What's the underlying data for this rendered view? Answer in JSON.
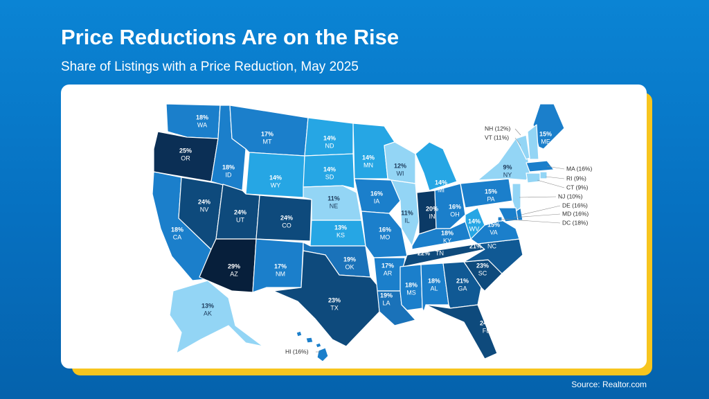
{
  "title": "Price Reductions Are on the Rise",
  "subtitle": "Share of Listings with a Price Reduction, May 2025",
  "source": "Source: Realtor.com",
  "states": [
    {
      "abbr": "WA",
      "value": 18,
      "value_label": "18%",
      "color": "#1b7fcb"
    },
    {
      "abbr": "OR",
      "value": 25,
      "value_label": "25%",
      "color": "#0b2f55"
    },
    {
      "abbr": "CA",
      "value": 18,
      "value_label": "18%",
      "color": "#1b7fcb"
    },
    {
      "abbr": "NV",
      "value": 24,
      "value_label": "24%",
      "color": "#0e4a7c"
    },
    {
      "abbr": "ID",
      "value": 18,
      "value_label": "18%",
      "color": "#1b7fcb"
    },
    {
      "abbr": "MT",
      "value": 17,
      "value_label": "17%",
      "color": "#1b7fcb"
    },
    {
      "abbr": "WY",
      "value": 14,
      "value_label": "14%",
      "color": "#26a6e4"
    },
    {
      "abbr": "UT",
      "value": 24,
      "value_label": "24%",
      "color": "#0e4a7c"
    },
    {
      "abbr": "CO",
      "value": 24,
      "value_label": "24%",
      "color": "#0e4a7c"
    },
    {
      "abbr": "AZ",
      "value": 29,
      "value_label": "29%",
      "color": "#071f3b"
    },
    {
      "abbr": "NM",
      "value": 17,
      "value_label": "17%",
      "color": "#1b7fcb"
    },
    {
      "abbr": "ND",
      "value": 14,
      "value_label": "14%",
      "color": "#26a6e4"
    },
    {
      "abbr": "SD",
      "value": 14,
      "value_label": "14%",
      "color": "#26a6e4"
    },
    {
      "abbr": "NE",
      "value": 11,
      "value_label": "11%",
      "color": "#93d5f5"
    },
    {
      "abbr": "KS",
      "value": 13,
      "value_label": "13%",
      "color": "#26a6e4"
    },
    {
      "abbr": "OK",
      "value": 19,
      "value_label": "19%",
      "color": "#1a72b9"
    },
    {
      "abbr": "TX",
      "value": 23,
      "value_label": "23%",
      "color": "#0e4a7c"
    },
    {
      "abbr": "MN",
      "value": 14,
      "value_label": "14%",
      "color": "#26a6e4"
    },
    {
      "abbr": "IA",
      "value": 16,
      "value_label": "16%",
      "color": "#1b7fcb"
    },
    {
      "abbr": "MO",
      "value": 16,
      "value_label": "16%",
      "color": "#1b7fcb"
    },
    {
      "abbr": "AR",
      "value": 17,
      "value_label": "17%",
      "color": "#1b7fcb"
    },
    {
      "abbr": "LA",
      "value": 19,
      "value_label": "19%",
      "color": "#1a72b9"
    },
    {
      "abbr": "WI",
      "value": 12,
      "value_label": "12%",
      "color": "#93d5f5"
    },
    {
      "abbr": "IL",
      "value": 11,
      "value_label": "11%",
      "color": "#93d5f5"
    },
    {
      "abbr": "MI",
      "value": 14,
      "value_label": "14%",
      "color": "#26a6e4"
    },
    {
      "abbr": "IN",
      "value": 20,
      "value_label": "20%",
      "color": "#0b3a66"
    },
    {
      "abbr": "OH",
      "value": 16,
      "value_label": "16%",
      "color": "#1b7fcb"
    },
    {
      "abbr": "KY",
      "value": 18,
      "value_label": "18%",
      "color": "#1b7fcb"
    },
    {
      "abbr": "TN",
      "value": 22,
      "value_label": "22%",
      "color": "#0e4a7c"
    },
    {
      "abbr": "MS",
      "value": 18,
      "value_label": "18%",
      "color": "#1b7fcb"
    },
    {
      "abbr": "AL",
      "value": 18,
      "value_label": "18%",
      "color": "#1b7fcb"
    },
    {
      "abbr": "GA",
      "value": 21,
      "value_label": "21%",
      "color": "#105994"
    },
    {
      "abbr": "FL",
      "value": 24,
      "value_label": "24%",
      "color": "#0e4a7c"
    },
    {
      "abbr": "SC",
      "value": 23,
      "value_label": "23%",
      "color": "#0e4a7c"
    },
    {
      "abbr": "NC",
      "value": 21,
      "value_label": "21%",
      "color": "#105994"
    },
    {
      "abbr": "VA",
      "value": 15,
      "value_label": "15%",
      "color": "#1b7fcb"
    },
    {
      "abbr": "WV",
      "value": 14,
      "value_label": "14%",
      "color": "#26a6e4"
    },
    {
      "abbr": "PA",
      "value": 15,
      "value_label": "15%",
      "color": "#1b7fcb"
    },
    {
      "abbr": "NY",
      "value": 9,
      "value_label": "9%",
      "color": "#93d5f5"
    },
    {
      "abbr": "ME",
      "value": 15,
      "value_label": "15%",
      "color": "#1b7fcb"
    },
    {
      "abbr": "AK",
      "value": 13,
      "value_label": "13%",
      "color": "#93d5f5"
    },
    {
      "label": "HI (16%)",
      "value": 16,
      "color": "#1b7fcb"
    },
    {
      "label": "NH (12%)",
      "value": 12,
      "color": "#93d5f5"
    },
    {
      "label": "VT (11%)",
      "value": 11,
      "color": "#93d5f5"
    },
    {
      "label": "MA (16%)",
      "value": 16,
      "color": "#1b7fcb"
    },
    {
      "label": "RI (9%)",
      "value": 9,
      "color": "#93d5f5"
    },
    {
      "label": "CT (9%)",
      "value": 9,
      "color": "#93d5f5"
    },
    {
      "label": "NJ (10%)",
      "value": 10,
      "color": "#93d5f5"
    },
    {
      "label": "DE (16%)",
      "value": 16,
      "color": "#1b7fcb"
    },
    {
      "label": "MD (16%)",
      "value": 16,
      "color": "#1b7fcb"
    },
    {
      "label": "DC (18%)",
      "value": 18,
      "color": "#1b7fcb"
    }
  ]
}
